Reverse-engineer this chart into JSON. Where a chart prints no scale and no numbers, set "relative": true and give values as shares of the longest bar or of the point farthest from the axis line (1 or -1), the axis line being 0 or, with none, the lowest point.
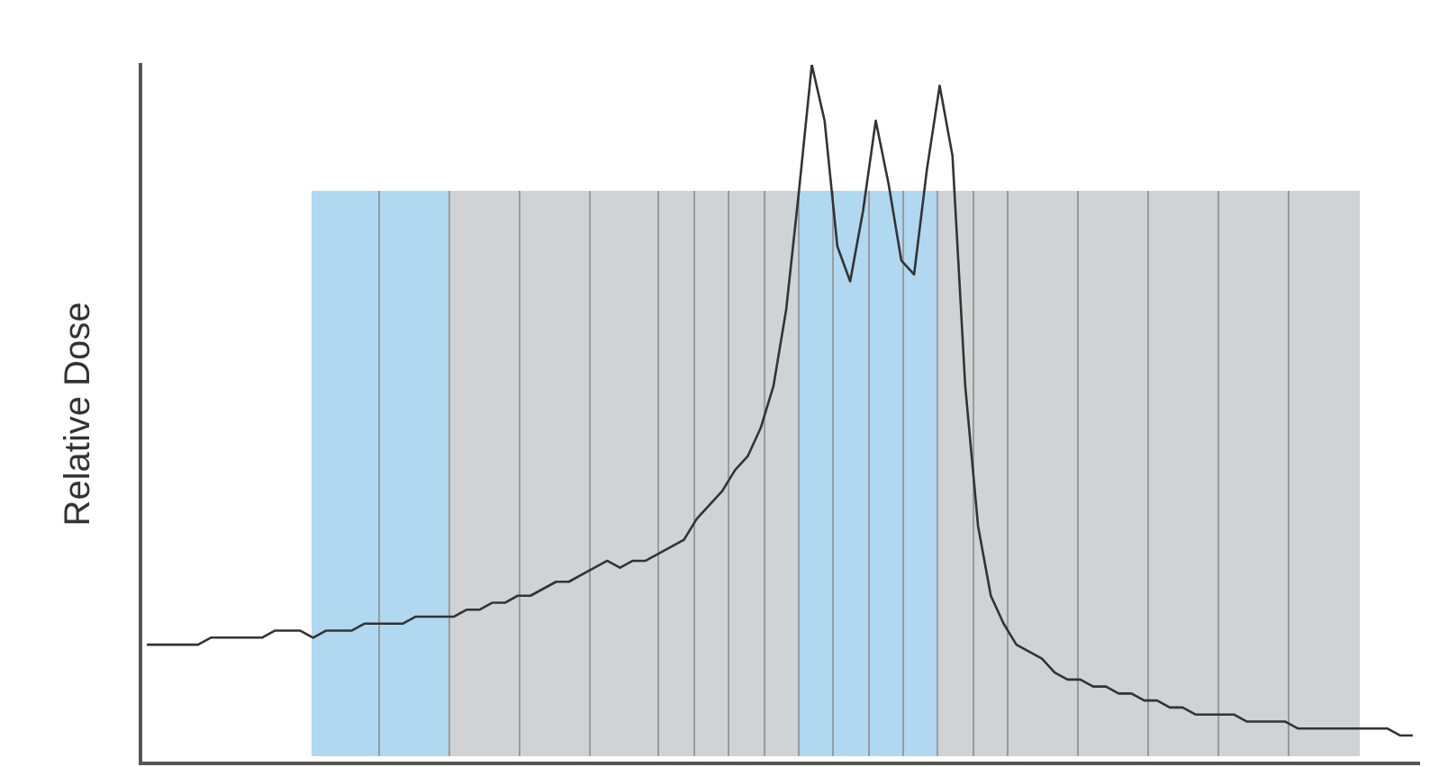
{
  "chart_data": {
    "type": "line",
    "ylabel": "Relative Dose",
    "relative": true,
    "tick_labels": false,
    "grid": false,
    "legend": false,
    "categories": [
      null,
      null,
      null,
      null,
      null,
      null,
      null,
      null,
      null,
      null,
      null,
      null,
      null,
      null,
      null,
      null,
      null,
      null,
      null,
      null,
      null,
      null,
      null,
      null,
      null,
      null,
      null,
      null,
      null,
      null,
      null,
      null,
      null,
      null,
      null,
      null,
      null,
      null,
      null,
      null,
      null,
      null,
      null,
      null,
      null,
      null,
      null,
      null,
      null,
      null,
      null,
      null,
      null,
      null,
      null,
      null,
      null,
      null,
      null,
      null,
      null,
      null,
      null,
      null,
      null,
      null,
      null,
      null,
      null,
      null,
      null,
      null,
      null,
      null,
      null,
      null,
      null,
      null,
      null,
      null,
      null,
      null,
      null,
      null,
      null,
      null,
      null,
      null,
      null,
      null,
      null,
      null,
      null,
      null,
      null,
      null,
      null,
      null,
      null,
      null
    ],
    "series": [
      {
        "color": "#333333",
        "values": [
          0.17,
          0.17,
          0.17,
          0.17,
          0.17,
          0.18,
          0.18,
          0.18,
          0.18,
          0.18,
          0.19,
          0.19,
          0.19,
          0.18,
          0.19,
          0.19,
          0.19,
          0.2,
          0.2,
          0.2,
          0.2,
          0.21,
          0.21,
          0.21,
          0.21,
          0.22,
          0.22,
          0.23,
          0.23,
          0.24,
          0.24,
          0.25,
          0.26,
          0.26,
          0.27,
          0.28,
          0.29,
          0.28,
          0.29,
          0.29,
          0.3,
          0.31,
          0.32,
          0.35,
          0.37,
          0.39,
          0.42,
          0.44,
          0.48,
          0.54,
          0.65,
          0.82,
          1,
          0.92,
          0.74,
          0.69,
          0.79,
          0.92,
          0.83,
          0.72,
          0.7,
          0.85,
          0.97,
          0.87,
          0.54,
          0.34,
          0.24,
          0.2,
          0.17,
          0.16,
          0.15,
          0.13,
          0.12,
          0.12,
          0.11,
          0.11,
          0.1,
          0.1,
          0.09,
          0.09,
          0.08,
          0.08,
          0.07,
          0.07,
          0.07,
          0.07,
          0.06,
          0.06,
          0.06,
          0.06,
          0.05,
          0.05,
          0.05,
          0.05,
          0.05,
          0.05,
          0.05,
          0.05,
          0.04,
          0.04
        ]
      }
    ]
  }
}
